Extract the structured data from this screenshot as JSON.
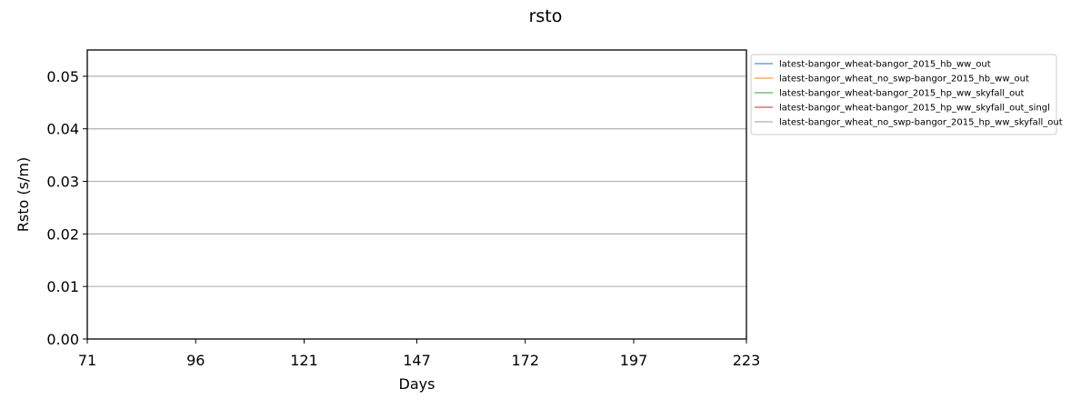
{
  "chart_data": {
    "type": "line",
    "title": "rsto",
    "xlabel": "Days",
    "ylabel": "Rsto (s/m)",
    "xlim": [
      71,
      223
    ],
    "ylim": [
      0,
      0.055
    ],
    "xticks": [
      71,
      96,
      121,
      147,
      172,
      197,
      223
    ],
    "xtick_labels": [
      "71",
      "96",
      "121",
      "147",
      "172",
      "197",
      "223"
    ],
    "yticks": [
      0.0,
      0.01,
      0.02,
      0.03,
      0.04,
      0.05
    ],
    "ytick_labels": [
      "0.00",
      "0.01",
      "0.02",
      "0.03",
      "0.04",
      "0.05"
    ],
    "grid": "horizontal",
    "legend_position": "outside-right-top",
    "series": [
      {
        "name": "latest-bangor_wheat-bangor_2015_hb_ww_out",
        "color": "#1f77b4",
        "x": [],
        "y": []
      },
      {
        "name": "latest-bangor_wheat_no_swp-bangor_2015_hb_ww_out",
        "color": "#ff7f0e",
        "x": [],
        "y": []
      },
      {
        "name": "latest-bangor_wheat-bangor_2015_hp_ww_skyfall_out",
        "color": "#2ca02c",
        "x": [],
        "y": []
      },
      {
        "name": "latest-bangor_wheat-bangor_2015_hp_ww_skyfall_out_singl",
        "color": "#d62728",
        "x": [],
        "y": []
      },
      {
        "name": "latest-bangor_wheat_no_swp-bangor_2015_hp_ww_skyfall_out",
        "color": "#9a9a9a",
        "x": [],
        "y": []
      }
    ]
  }
}
